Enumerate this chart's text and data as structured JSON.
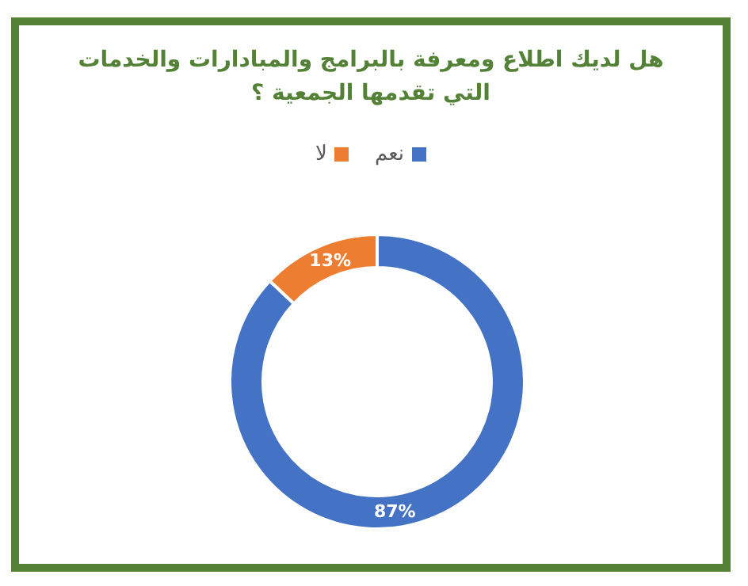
{
  "chart_data": {
    "type": "donut",
    "title": "هل لديك اطلاع ومعرفة بالبرامج والمبادارات والخدمات التي تقدمها الجمعية ؟",
    "categories": [
      "نعم",
      "لا"
    ],
    "values": [
      87,
      13
    ],
    "colors": [
      "#4472c4",
      "#ed7d31"
    ],
    "value_labels": [
      "87%",
      "13%"
    ],
    "legend": "top"
  }
}
